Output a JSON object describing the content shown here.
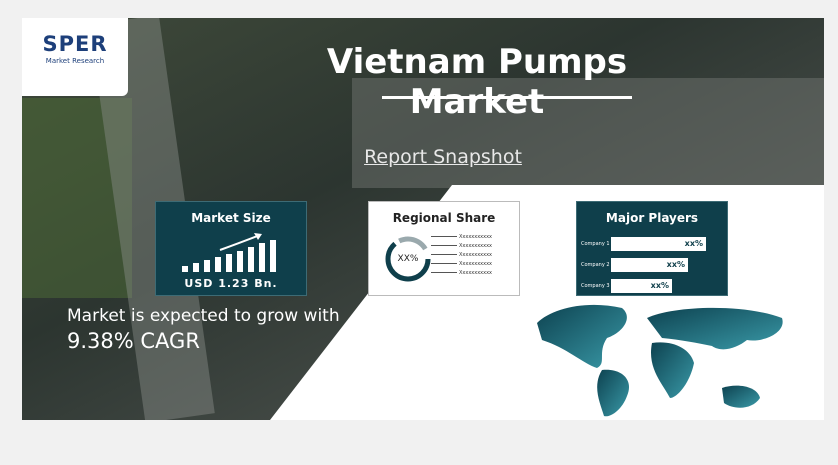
{
  "logo": {
    "name": "SPER",
    "tagline": "Market Research"
  },
  "title": "Vietnam Pumps Market",
  "snapshot": {
    "heading": "Report Snapshot",
    "market_size": {
      "title": "Market Size",
      "value": "USD 1.23 Bn."
    },
    "regional_share": {
      "title": "Regional Share",
      "center": "XX%",
      "legend": [
        "Xxxxxxxxxxx",
        "Xxxxxxxxxxx",
        "Xxxxxxxxxxx",
        "Xxxxxxxxxxx",
        "Xxxxxxxxxxx"
      ]
    },
    "major_players": {
      "title": "Major Players",
      "rows": [
        {
          "company": "Company 1",
          "share": "xx%"
        },
        {
          "company": "Company 2",
          "share": "xx%"
        },
        {
          "company": "Company 3",
          "share": "xx%"
        }
      ]
    }
  },
  "growth": {
    "text": "Market is expected to grow with",
    "cagr": "9.38% CAGR"
  }
}
